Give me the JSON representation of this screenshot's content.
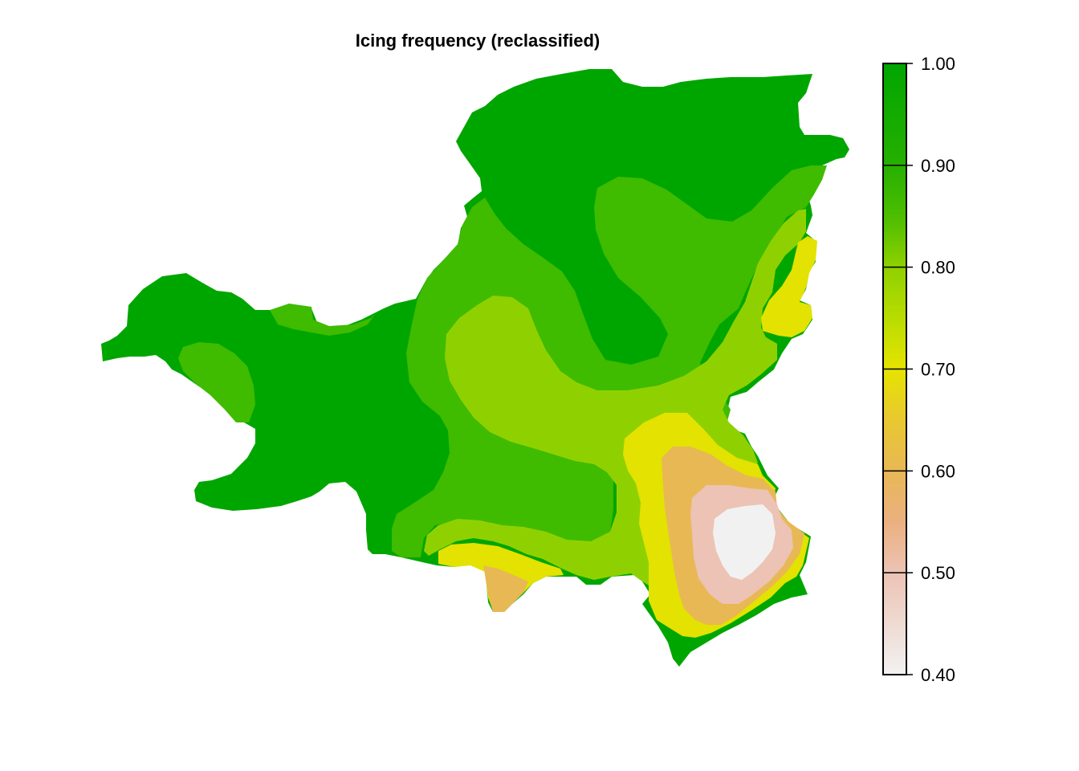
{
  "map": {
    "title": "Icing frequency (reclassified)",
    "type": "raster",
    "classes": [
      {
        "range": [
          0.4,
          0.5
        ],
        "color": "#f1f1f1"
      },
      {
        "range": [
          0.5,
          0.6
        ],
        "color": "#ecc3b4"
      },
      {
        "range": [
          0.6,
          0.7
        ],
        "color": "#e8b855"
      },
      {
        "range": [
          0.7,
          0.8
        ],
        "color": "#e3e200"
      },
      {
        "range": [
          0.8,
          0.9
        ],
        "color": "#8fd100"
      },
      {
        "range": [
          0.9,
          1.0
        ],
        "color": "#3fbb00"
      },
      {
        "range": [
          0.9,
          1.0
        ],
        "color": "#00a600",
        "note_level": "top"
      }
    ]
  },
  "legend": {
    "title": "",
    "range": [
      0.4,
      1.0
    ],
    "ticks": [
      "1.00",
      "0.90",
      "0.80",
      "0.70",
      "0.60",
      "0.50",
      "0.40"
    ],
    "tick_values": [
      1.0,
      0.9,
      0.8,
      0.7,
      0.6,
      0.5,
      0.4
    ],
    "gradient_stops": [
      {
        "value": 1.0,
        "color": "#00a600"
      },
      {
        "value": 0.9,
        "color": "#26b000"
      },
      {
        "value": 0.85,
        "color": "#4cbd00"
      },
      {
        "value": 0.8,
        "color": "#8fd100"
      },
      {
        "value": 0.75,
        "color": "#b9dc00"
      },
      {
        "value": 0.7,
        "color": "#e6e400"
      },
      {
        "value": 0.65,
        "color": "#e8c830"
      },
      {
        "value": 0.6,
        "color": "#e8b855"
      },
      {
        "value": 0.55,
        "color": "#ebb080"
      },
      {
        "value": 0.5,
        "color": "#ecc3b4"
      },
      {
        "value": 0.45,
        "color": "#efdad2"
      },
      {
        "value": 0.4,
        "color": "#f2f2f2"
      }
    ]
  }
}
